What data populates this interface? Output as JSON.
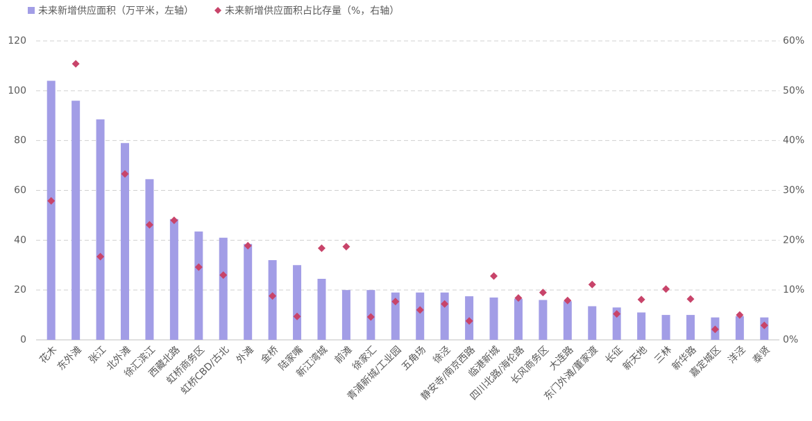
{
  "chart_data": {
    "type": "bar_scatter",
    "categories": [
      "花木",
      "东外滩",
      "张江",
      "北外滩",
      "徐汇滨江",
      "西藏北路",
      "虹桥商务区",
      "虹桥CBD/古北",
      "外滩",
      "金桥",
      "陆家嘴",
      "新江湾城",
      "前滩",
      "徐家汇",
      "青浦新城/工业园",
      "五角场",
      "徐泾",
      "静安寺/南京西路",
      "临港新城",
      "四川北路/海伦路",
      "长风商务区",
      "大连路",
      "东门外滩/董家渡",
      "长征",
      "新天地",
      "三林",
      "新华路",
      "嘉定城区",
      "洋泾",
      "泰贤"
    ],
    "series": [
      {
        "name": "未来新增供应面积（万平米，左轴）",
        "color": "#a29de6",
        "values": [
          104,
          96,
          88.5,
          79,
          64.5,
          48.5,
          43.5,
          41,
          38.5,
          32,
          30,
          24.5,
          20,
          20,
          19,
          19,
          19,
          17.5,
          17,
          16.5,
          16,
          15.5,
          13.5,
          13,
          11,
          10,
          10,
          9,
          9.5,
          9
        ]
      },
      {
        "name": "未来新增供应面积占比存量（%，右轴）",
        "color": "#c8446a",
        "axis": "y2",
        "values": [
          27.9,
          55.4,
          16.7,
          33.3,
          23.1,
          24.0,
          14.6,
          13.0,
          18.9,
          8.8,
          4.7,
          18.4,
          18.7,
          4.6,
          7.7,
          6.0,
          7.2,
          3.8,
          12.8,
          8.4,
          9.5,
          7.9,
          11.1,
          5.2,
          8.1,
          10.2,
          8.2,
          2.1,
          5.0,
          2.9
        ]
      }
    ],
    "ylim": [
      0,
      120
    ],
    "yticks": [
      0,
      20,
      40,
      60,
      80,
      100,
      120
    ],
    "y2lim": [
      0,
      60
    ],
    "y2ticks": [
      {
        "value": 0,
        "label": "0%"
      },
      {
        "value": 10,
        "label": "10%"
      },
      {
        "value": 20,
        "label": "20%"
      },
      {
        "value": 30,
        "label": "30%"
      },
      {
        "value": 40,
        "label": "40%"
      },
      {
        "value": 50,
        "label": "50%"
      },
      {
        "value": 60,
        "label": "60%"
      }
    ],
    "grid": true
  }
}
